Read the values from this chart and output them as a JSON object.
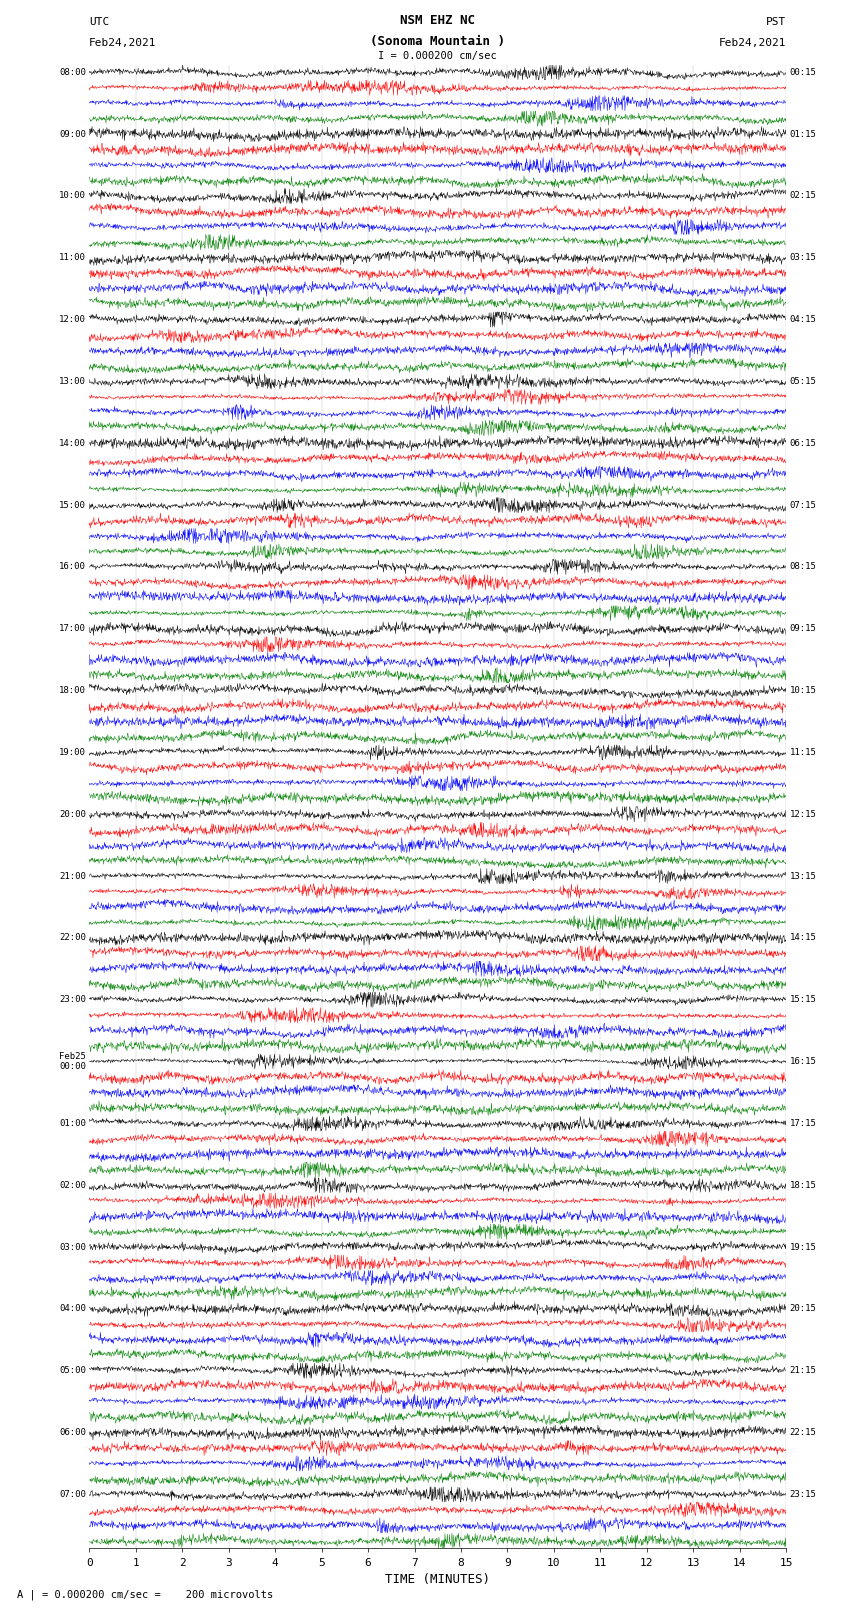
{
  "title_line1": "NSM EHZ NC",
  "title_line2": "(Sonoma Mountain )",
  "scale_label": "I = 0.000200 cm/sec",
  "left_header_line1": "UTC",
  "left_header_line2": "Feb24,2021",
  "right_header_line1": "PST",
  "right_header_line2": "Feb24,2021",
  "bottom_label": "TIME (MINUTES)",
  "bottom_note": "A | = 0.000200 cm/sec =    200 microvolts",
  "utc_labels": [
    "08:00",
    "09:00",
    "10:00",
    "11:00",
    "12:00",
    "13:00",
    "14:00",
    "15:00",
    "16:00",
    "17:00",
    "18:00",
    "19:00",
    "20:00",
    "21:00",
    "22:00",
    "23:00",
    "Feb25\n00:00",
    "01:00",
    "02:00",
    "03:00",
    "04:00",
    "05:00",
    "06:00",
    "07:00"
  ],
  "pst_labels": [
    "00:15",
    "01:15",
    "02:15",
    "03:15",
    "04:15",
    "05:15",
    "06:15",
    "07:15",
    "08:15",
    "09:15",
    "10:15",
    "11:15",
    "12:15",
    "13:15",
    "14:15",
    "15:15",
    "16:15",
    "17:15",
    "18:15",
    "19:15",
    "20:15",
    "21:15",
    "22:15",
    "23:15"
  ],
  "n_hours": 24,
  "traces_per_hour": 4,
  "n_cols": 1500,
  "colors_cycle": [
    "black",
    "red",
    "blue",
    "green"
  ],
  "bg_color": "white",
  "line_width": 0.35,
  "fig_width": 8.5,
  "fig_height": 16.13,
  "x_min": 0,
  "x_max": 15,
  "x_ticks": [
    0,
    1,
    2,
    3,
    4,
    5,
    6,
    7,
    8,
    9,
    10,
    11,
    12,
    13,
    14,
    15
  ],
  "random_seed": 42,
  "amp_quiet": 0.3,
  "amp_noisy": 0.42,
  "amp_very_noisy": 0.55,
  "noise_transition_hour": 14,
  "noise_high_hour": 17
}
